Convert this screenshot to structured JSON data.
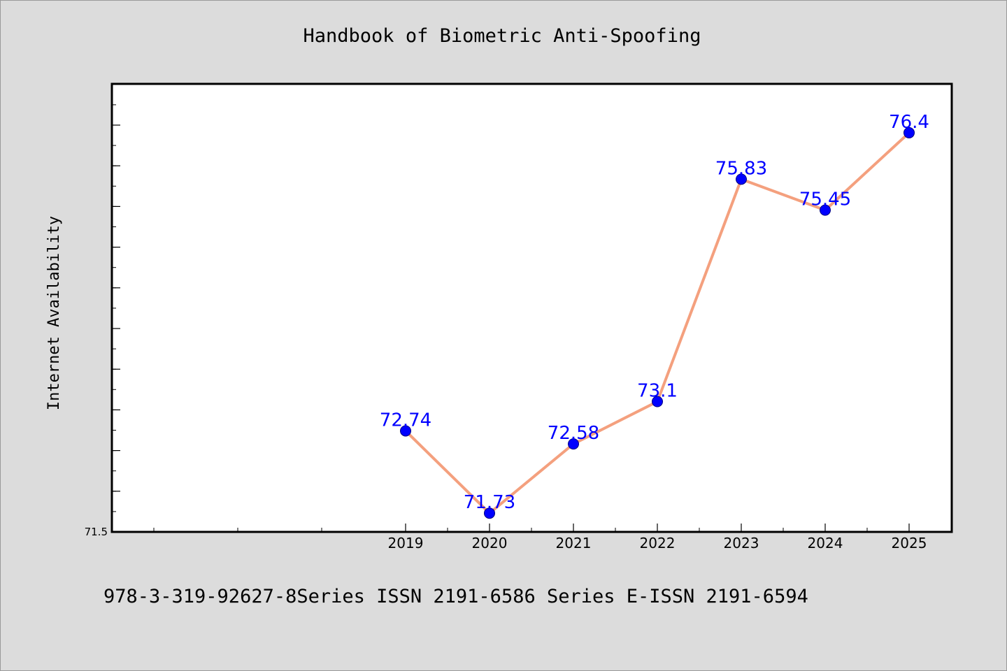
{
  "colors": {
    "background": "#dcdcdc",
    "plot_background": "#ffffff",
    "axis": "#000000",
    "line": "#f4a07e",
    "marker": "#0000ff",
    "data_label": "#0000ff",
    "text": "#000000"
  },
  "header": {
    "title": "Handbook of Biometric Anti-Spoofing"
  },
  "footer": {
    "note": "978-3-319-92627-8Series ISSN 2191-6586 Series E-ISSN 2191-6594"
  },
  "chart_data": {
    "type": "line",
    "title": "Handbook of Biometric Anti-Spoofing",
    "xlabel": "",
    "ylabel": "Internet Availability",
    "categories": [
      "2019",
      "2020",
      "2021",
      "2022",
      "2023",
      "2024",
      "2025"
    ],
    "series": [
      {
        "values": [
          72.74,
          71.73,
          72.58,
          73.1,
          75.83,
          75.45,
          76.4
        ],
        "labels": [
          "72.74",
          "71.73",
          "72.58",
          "73.1",
          "75.83",
          "75.45",
          "76.4"
        ]
      }
    ],
    "ylim": [
      71.5,
      77.0
    ],
    "y_tick_labels": [
      "71.5"
    ],
    "grid": false,
    "legend": "none",
    "markers": true
  }
}
